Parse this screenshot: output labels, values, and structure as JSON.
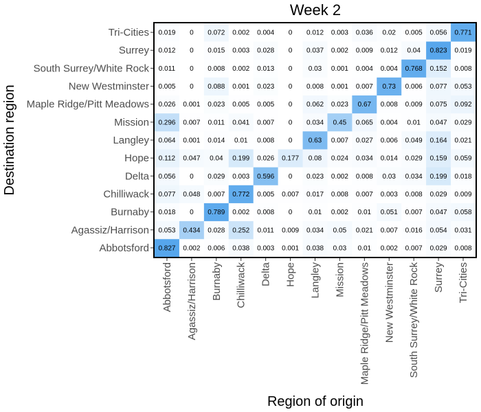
{
  "chart_data": {
    "type": "heatmap",
    "title": "Week 2",
    "xlabel": "Region of origin",
    "ylabel": "Destination region",
    "x_categories": [
      "Abbotsford",
      "Agassiz/Harrison",
      "Burnaby",
      "Chilliwack",
      "Delta",
      "Hope",
      "Langley",
      "Mission",
      "Maple Ridge/Pitt Meadows",
      "New Westminster",
      "South Surrey/White Rock",
      "Surrey",
      "Tri-Cities"
    ],
    "y_categories": [
      "Abbotsford",
      "Agassiz/Harrison",
      "Burnaby",
      "Chilliwack",
      "Delta",
      "Hope",
      "Langley",
      "Mission",
      "Maple Ridge/Pitt Meadows",
      "New Westminster",
      "South Surrey/White Rock",
      "Surrey",
      "Tri-Cities"
    ],
    "values": [
      [
        0.827,
        0.002,
        0.006,
        0.038,
        0.003,
        0.001,
        0.038,
        0.03,
        0.01,
        0.002,
        0.007,
        0.029,
        0.008
      ],
      [
        0.053,
        0.434,
        0.028,
        0.252,
        0.011,
        0.009,
        0.034,
        0.05,
        0.021,
        0.007,
        0.016,
        0.054,
        0.031
      ],
      [
        0.018,
        0,
        0.789,
        0.002,
        0.008,
        0,
        0.01,
        0.002,
        0.01,
        0.051,
        0.007,
        0.047,
        0.058
      ],
      [
        0.077,
        0.048,
        0.007,
        0.772,
        0.005,
        0.007,
        0.017,
        0.008,
        0.007,
        0.003,
        0.008,
        0.029,
        0.009
      ],
      [
        0.056,
        0,
        0.029,
        0.003,
        0.596,
        0,
        0.023,
        0.002,
        0.008,
        0.03,
        0.034,
        0.199,
        0.018
      ],
      [
        0.112,
        0.047,
        0.04,
        0.199,
        0.026,
        0.177,
        0.08,
        0.024,
        0.034,
        0.014,
        0.029,
        0.159,
        0.059
      ],
      [
        0.064,
        0.001,
        0.014,
        0.01,
        0.008,
        0,
        0.63,
        0.007,
        0.027,
        0.006,
        0.049,
        0.164,
        0.021
      ],
      [
        0.296,
        0.007,
        0.011,
        0.041,
        0.007,
        0,
        0.034,
        0.45,
        0.065,
        0.004,
        0.01,
        0.047,
        0.029
      ],
      [
        0.026,
        0.001,
        0.023,
        0.005,
        0.005,
        0,
        0.062,
        0.023,
        0.67,
        0.008,
        0.009,
        0.075,
        0.092
      ],
      [
        0.005,
        0,
        0.088,
        0.001,
        0.023,
        0,
        0.008,
        0.001,
        0.007,
        0.73,
        0.006,
        0.077,
        0.053
      ],
      [
        0.011,
        0,
        0.008,
        0.002,
        0.013,
        0,
        0.03,
        0.001,
        0.004,
        0.004,
        0.768,
        0.152,
        0.008
      ],
      [
        0.012,
        0,
        0.015,
        0.003,
        0.028,
        0,
        0.037,
        0.002,
        0.009,
        0.012,
        0.04,
        0.823,
        0.019
      ],
      [
        0.019,
        0,
        0.072,
        0.002,
        0.004,
        0,
        0.012,
        0.003,
        0.036,
        0.02,
        0.005,
        0.056,
        0.771
      ]
    ],
    "value_range": [
      0,
      0.827
    ],
    "color_low": "#ffffff",
    "color_high": "#56a6ec",
    "grid": false,
    "legend": "none"
  }
}
